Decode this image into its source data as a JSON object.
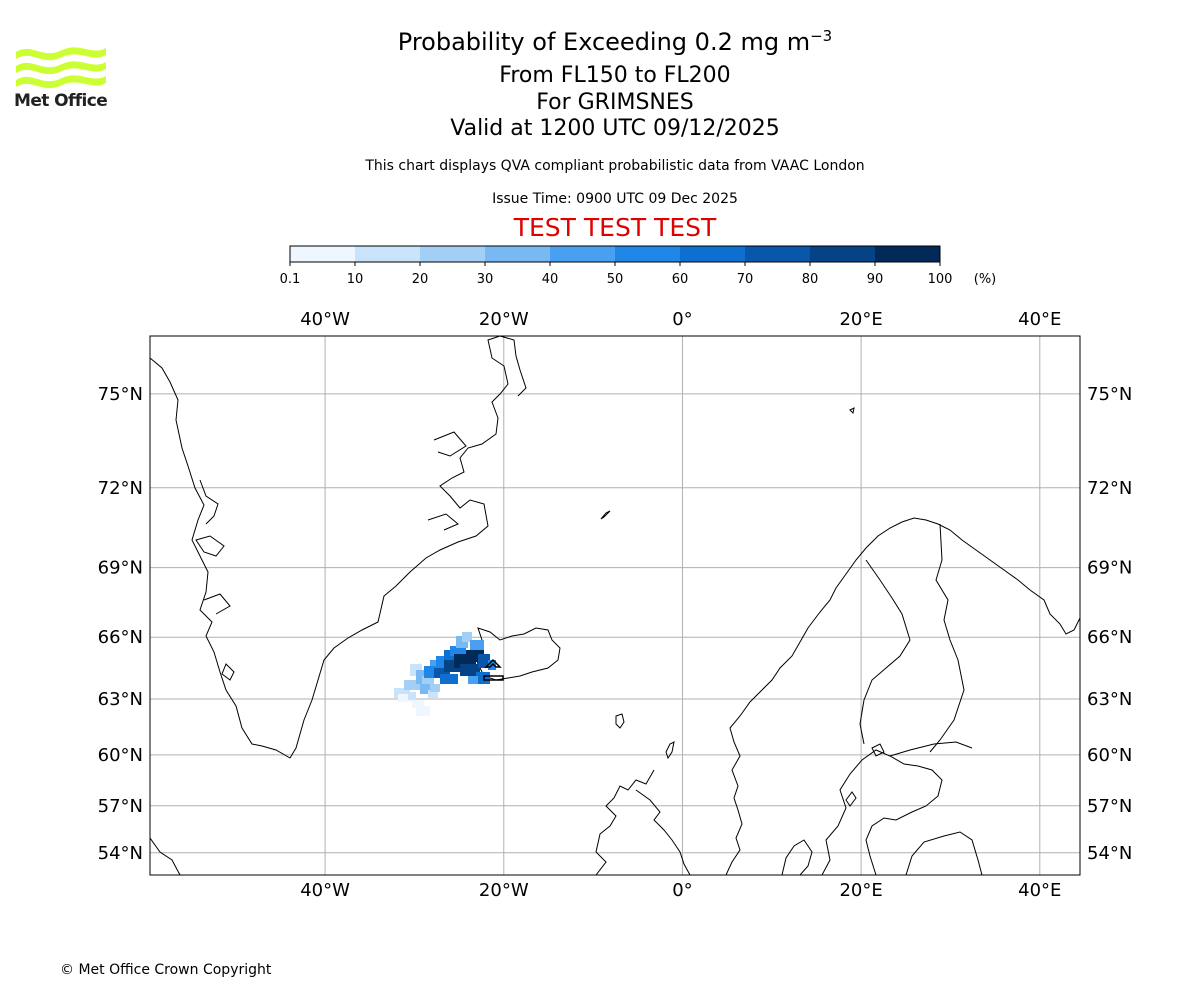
{
  "header": {
    "title_main": "Probability of Exceeding 0.2 mg m",
    "title_sup": "−3",
    "line2": "From FL150 to FL200",
    "line3": "For GRIMSNES",
    "line4": "Valid at 1200 UTC 09/12/2025",
    "note": "This chart displays QVA compliant probabilistic data from VAAC London",
    "issue_time": "Issue Time: 0900 UTC 09 Dec 2025",
    "test_banner": "TEST TEST TEST"
  },
  "logo": {
    "text": "Met Office",
    "color": "#ccff33"
  },
  "colorbar": {
    "ticks": [
      "0.1",
      "10",
      "20",
      "30",
      "40",
      "50",
      "60",
      "70",
      "80",
      "90",
      "100"
    ],
    "unit": "(%)",
    "colors": [
      "#eef6ff",
      "#c9e3fb",
      "#a3cff7",
      "#78b8f3",
      "#4aa0f0",
      "#1f87e8",
      "#0d6fd0",
      "#0957ab",
      "#064386",
      "#022a58"
    ]
  },
  "map": {
    "lon_labels": [
      "40°W",
      "20°W",
      "0°",
      "20°E",
      "40°E"
    ],
    "lon_values": [
      -40,
      -20,
      0,
      20,
      40
    ],
    "lat_labels": [
      "75°N",
      "72°N",
      "69°N",
      "66°N",
      "63°N",
      "60°N",
      "57°N",
      "54°N"
    ],
    "lat_values": [
      75,
      72,
      69,
      66,
      63,
      60,
      57,
      54
    ],
    "extent": {
      "lon": [
        -59.6,
        44.5
      ],
      "lat": [
        52.5,
        76.6
      ]
    },
    "gridlines": true
  },
  "footer": {
    "copyright": "© Met Office Crown Copyright"
  }
}
